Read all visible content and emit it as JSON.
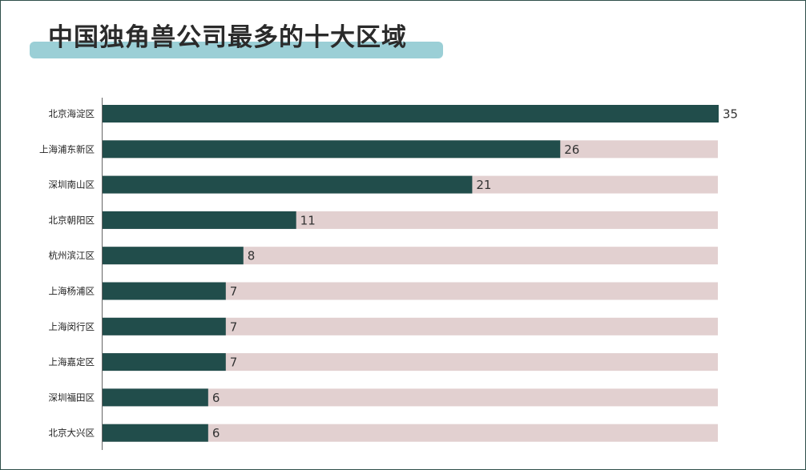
{
  "title": "中国独角兽公司最多的十大区域",
  "colors": {
    "bar": "#214d4b",
    "track": "#e2d0d0",
    "frame": "#2f4f4a",
    "highlight": "#9bcfd6"
  },
  "chart_data": {
    "type": "bar",
    "orientation": "horizontal",
    "title": "中国独角兽公司最多的十大区域",
    "categories": [
      "北京海淀区",
      "上海浦东新区",
      "深圳南山区",
      "北京朝阳区",
      "杭州滨江区",
      "上海杨浦区",
      "上海闵行区",
      "上海嘉定区",
      "深圳福田区",
      "北京大兴区"
    ],
    "values": [
      35,
      26,
      21,
      11,
      8,
      7,
      7,
      7,
      6,
      6
    ],
    "data_labels": [
      "35",
      "26",
      "21",
      "11",
      "8",
      "7",
      "7",
      "7",
      "6",
      "6"
    ],
    "xlim": [
      0,
      35
    ],
    "background_track": true,
    "grid": false,
    "legend": "none"
  }
}
